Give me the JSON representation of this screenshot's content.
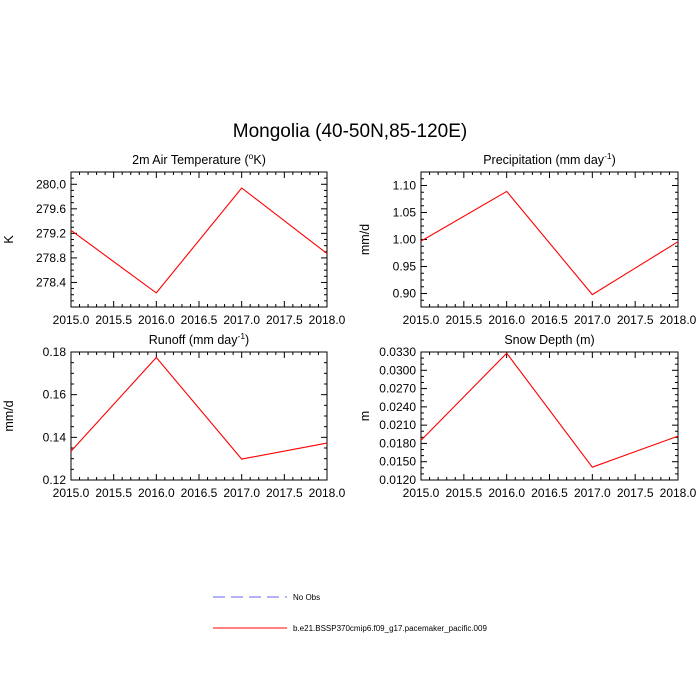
{
  "figure": {
    "title": "Mongolia (40-50N,85-120E)"
  },
  "chart_data": [
    {
      "type": "line",
      "title": "2m Air Temperature (°K)",
      "title_parts": [
        "2m Air Temperature (",
        "o",
        "K)"
      ],
      "ylabel": "K",
      "xlabel": "",
      "x": [
        2015.0,
        2016.0,
        2017.0,
        2018.0
      ],
      "xlim": [
        2015.0,
        2018.0
      ],
      "xticks": [
        "2015.0",
        "2015.5",
        "2016.0",
        "2016.5",
        "2017.0",
        "2017.5",
        "2018.0"
      ],
      "ylim": [
        278.0,
        280.2
      ],
      "yticks": [
        278.4,
        278.8,
        279.2,
        279.6,
        280.0
      ],
      "ytick_labels": [
        "278.4",
        "278.8",
        "279.2",
        "279.6",
        "280.0"
      ],
      "series": [
        {
          "name": "b.e21.BSSP370cmip6.f09_g17.pacemaker_pacific.009",
          "color": "#ff0000",
          "values": [
            279.25,
            278.23,
            279.94,
            278.87
          ]
        }
      ]
    },
    {
      "type": "line",
      "title": "Precipitation (mm day-1)",
      "title_parts": [
        "Precipitation (mm day",
        "-1",
        ")"
      ],
      "ylabel": "mm/d",
      "xlabel": "",
      "x": [
        2015.0,
        2016.0,
        2017.0,
        2018.0
      ],
      "xlim": [
        2015.0,
        2018.0
      ],
      "xticks": [
        "2015.0",
        "2015.5",
        "2016.0",
        "2016.5",
        "2017.0",
        "2017.5",
        "2018.0"
      ],
      "ylim": [
        0.875,
        1.125
      ],
      "yticks": [
        0.9,
        0.95,
        1.0,
        1.05,
        1.1
      ],
      "ytick_labels": [
        "0.90",
        "0.95",
        "1.00",
        "1.05",
        "1.10"
      ],
      "series": [
        {
          "name": "b.e21.BSSP370cmip6.f09_g17.pacemaker_pacific.009",
          "color": "#ff0000",
          "values": [
            0.997,
            1.089,
            0.898,
            0.996
          ]
        }
      ]
    },
    {
      "type": "line",
      "title": "Runoff (mm day-1)",
      "title_parts": [
        "Runoff (mm day",
        "-1",
        ")"
      ],
      "ylabel": "mm/d",
      "xlabel": "",
      "x": [
        2015.0,
        2016.0,
        2017.0,
        2018.0
      ],
      "xlim": [
        2015.0,
        2018.0
      ],
      "xticks": [
        "2015.0",
        "2015.5",
        "2016.0",
        "2016.5",
        "2017.0",
        "2017.5",
        "2018.0"
      ],
      "ylim": [
        0.12,
        0.18
      ],
      "yticks": [
        0.12,
        0.14,
        0.16,
        0.18
      ],
      "ytick_labels": [
        "0.12",
        "0.14",
        "0.16",
        "0.18"
      ],
      "series": [
        {
          "name": "b.e21.BSSP370cmip6.f09_g17.pacemaker_pacific.009",
          "color": "#ff0000",
          "values": [
            0.1335,
            0.1774,
            0.1298,
            0.1373
          ]
        }
      ]
    },
    {
      "type": "line",
      "title": "Snow Depth (m)",
      "title_parts": [
        "Snow Depth (m)",
        "",
        ""
      ],
      "ylabel": "m",
      "xlabel": "",
      "x": [
        2015.0,
        2016.0,
        2017.0,
        2018.0
      ],
      "xlim": [
        2015.0,
        2018.0
      ],
      "xticks": [
        "2015.0",
        "2015.5",
        "2016.0",
        "2016.5",
        "2017.0",
        "2017.5",
        "2018.0"
      ],
      "ylim": [
        0.012,
        0.033
      ],
      "yticks": [
        0.012,
        0.015,
        0.018,
        0.021,
        0.024,
        0.027,
        0.03,
        0.033
      ],
      "ytick_labels": [
        "0.0120",
        "0.0150",
        "0.0180",
        "0.0210",
        "0.0240",
        "0.0270",
        "0.0300",
        "0.0330"
      ],
      "series": [
        {
          "name": "b.e21.BSSP370cmip6.f09_g17.pacemaker_pacific.009",
          "color": "#ff0000",
          "values": [
            0.0185,
            0.0328,
            0.0141,
            0.0192
          ]
        }
      ]
    }
  ],
  "legend": {
    "entries": [
      {
        "label": "No Obs",
        "color": "#6666ee",
        "style": "dashed"
      },
      {
        "label": "b.e21.BSSP370cmip6.f09_g17.pacemaker_pacific.009",
        "color": "#ff0000",
        "style": "solid"
      }
    ]
  }
}
